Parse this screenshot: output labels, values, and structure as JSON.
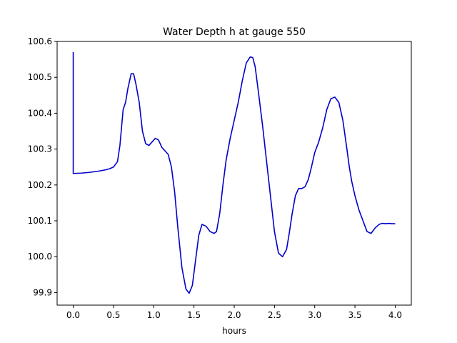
{
  "chart_data": {
    "type": "line",
    "title": "Water Depth h at gauge 550",
    "xlabel": "hours",
    "ylabel": "",
    "xlim": [
      -0.2,
      4.2
    ],
    "ylim": [
      99.865,
      100.6
    ],
    "xticks": [
      0.0,
      0.5,
      1.0,
      1.5,
      2.0,
      2.5,
      3.0,
      3.5,
      4.0
    ],
    "xtick_labels": [
      "0.0",
      "0.5",
      "1.0",
      "1.5",
      "2.0",
      "2.5",
      "3.0",
      "3.5",
      "4.0"
    ],
    "yticks": [
      99.9,
      100.0,
      100.1,
      100.2,
      100.3,
      100.4,
      100.5,
      100.6
    ],
    "ytick_labels": [
      "99.9",
      "100.0",
      "100.1",
      "100.2",
      "100.3",
      "100.4",
      "100.5",
      "100.6"
    ],
    "grid": false,
    "legend": "none",
    "series": [
      {
        "color": "#0000cc",
        "x": [
          0.0,
          0.0,
          0.0,
          0.1,
          0.2,
          0.3,
          0.4,
          0.45,
          0.5,
          0.55,
          0.58,
          0.62,
          0.65,
          0.68,
          0.72,
          0.75,
          0.78,
          0.82,
          0.86,
          0.9,
          0.94,
          0.98,
          1.02,
          1.06,
          1.1,
          1.14,
          1.18,
          1.22,
          1.26,
          1.3,
          1.35,
          1.4,
          1.44,
          1.48,
          1.52,
          1.56,
          1.6,
          1.65,
          1.7,
          1.75,
          1.78,
          1.82,
          1.86,
          1.9,
          1.95,
          2.0,
          2.05,
          2.1,
          2.15,
          2.2,
          2.23,
          2.26,
          2.3,
          2.35,
          2.4,
          2.45,
          2.5,
          2.55,
          2.6,
          2.65,
          2.68,
          2.72,
          2.76,
          2.8,
          2.84,
          2.88,
          2.92,
          2.96,
          3.0,
          3.05,
          3.1,
          3.15,
          3.2,
          3.25,
          3.3,
          3.35,
          3.4,
          3.43,
          3.46,
          3.5,
          3.55,
          3.6,
          3.65,
          3.7,
          3.75,
          3.8,
          3.84,
          3.88,
          3.92,
          3.96,
          4.0
        ],
        "y": [
          100.57,
          100.232,
          100.232,
          100.233,
          100.235,
          100.238,
          100.242,
          100.245,
          100.25,
          100.265,
          100.31,
          100.41,
          100.43,
          100.47,
          100.51,
          100.51,
          100.48,
          100.43,
          100.35,
          100.315,
          100.31,
          100.32,
          100.33,
          100.325,
          100.305,
          100.295,
          100.285,
          100.25,
          100.18,
          100.08,
          99.97,
          99.91,
          99.898,
          99.92,
          99.99,
          100.06,
          100.09,
          100.085,
          100.07,
          100.065,
          100.07,
          100.12,
          100.2,
          100.27,
          100.33,
          100.38,
          100.43,
          100.49,
          100.54,
          100.557,
          100.555,
          100.53,
          100.46,
          100.37,
          100.27,
          100.17,
          100.07,
          100.01,
          100.0,
          100.02,
          100.06,
          100.12,
          100.17,
          100.19,
          100.19,
          100.195,
          100.215,
          100.25,
          100.29,
          100.32,
          100.36,
          100.41,
          100.44,
          100.445,
          100.43,
          100.38,
          100.3,
          100.25,
          100.21,
          100.17,
          100.13,
          100.1,
          100.07,
          100.065,
          100.08,
          100.09,
          100.093,
          100.092,
          100.093,
          100.092,
          100.092
        ]
      }
    ]
  }
}
